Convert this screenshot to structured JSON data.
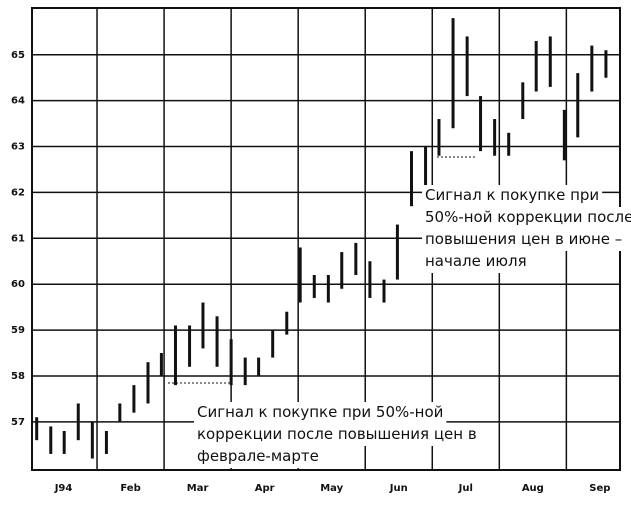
{
  "chart_data": {
    "type": "range-bar",
    "color": "#111111",
    "x": [
      0.1,
      0.31,
      0.51,
      0.72,
      0.93,
      1.14,
      1.34,
      1.55,
      1.76,
      1.96,
      2.17,
      2.38,
      2.58,
      2.79,
      3.0,
      3.21,
      3.41,
      3.62,
      3.83,
      4.03,
      4.24,
      4.45,
      4.65,
      4.86,
      5.07,
      5.28,
      5.48,
      5.69,
      5.9,
      6.1,
      6.31,
      6.52,
      6.72,
      6.93,
      7.14,
      7.35,
      7.55,
      7.76,
      7.97,
      8.17,
      8.38,
      8.59
    ],
    "series": [
      {
        "name": "high",
        "values": [
          57.1,
          56.9,
          56.8,
          57.4,
          57.0,
          56.8,
          57.4,
          57.8,
          58.3,
          58.5,
          59.1,
          59.1,
          59.6,
          59.3,
          58.8,
          58.4,
          58.4,
          59.0,
          59.4,
          60.8,
          60.2,
          60.2,
          60.7,
          60.9,
          60.5,
          60.1,
          61.3,
          62.9,
          63.0,
          63.6,
          65.8,
          65.4,
          64.1,
          63.6,
          63.3,
          64.4,
          65.3,
          65.4,
          63.8,
          64.6,
          65.2,
          65.1
        ]
      },
      {
        "name": "low",
        "values": [
          56.6,
          56.3,
          56.3,
          56.6,
          56.2,
          56.3,
          57.0,
          57.2,
          57.4,
          58.0,
          57.8,
          58.2,
          58.6,
          58.2,
          57.8,
          57.8,
          58.0,
          58.4,
          58.9,
          59.6,
          59.7,
          59.6,
          59.9,
          60.2,
          59.7,
          59.6,
          60.1,
          61.7,
          62.1,
          62.8,
          63.4,
          64.1,
          62.9,
          62.8,
          62.8,
          63.6,
          64.2,
          64.3,
          62.7,
          63.2,
          64.2,
          64.5
        ]
      }
    ],
    "xlim": [
      0.03,
      8.8
    ],
    "xticks": [
      {
        "value": 0.5,
        "label": "J94"
      },
      {
        "value": 1.5,
        "label": "Feb"
      },
      {
        "value": 2.5,
        "label": "Mar"
      },
      {
        "value": 3.5,
        "label": "Apr"
      },
      {
        "value": 4.5,
        "label": "May"
      },
      {
        "value": 5.5,
        "label": "Jun"
      },
      {
        "value": 6.5,
        "label": "Jul"
      },
      {
        "value": 7.5,
        "label": "Aug"
      },
      {
        "value": 8.5,
        "label": "Sep"
      }
    ],
    "xgrid": [
      1,
      2,
      3,
      4,
      5,
      6,
      7,
      8
    ],
    "ylim": [
      55.95,
      66.02
    ],
    "yticks": [
      57,
      58,
      59,
      60,
      61,
      62,
      63,
      64,
      65
    ],
    "grid": true,
    "annotations": [
      {
        "lines": [
          "Сигнал к покупке при",
          "50%-ной коррекции после",
          "повышения цен в июне –",
          "начале июля"
        ]
      },
      {
        "lines": [
          "Сигнал к покупке при 50%-ной",
          "коррекции после повышения цен в",
          "феврале-марте"
        ]
      }
    ]
  }
}
